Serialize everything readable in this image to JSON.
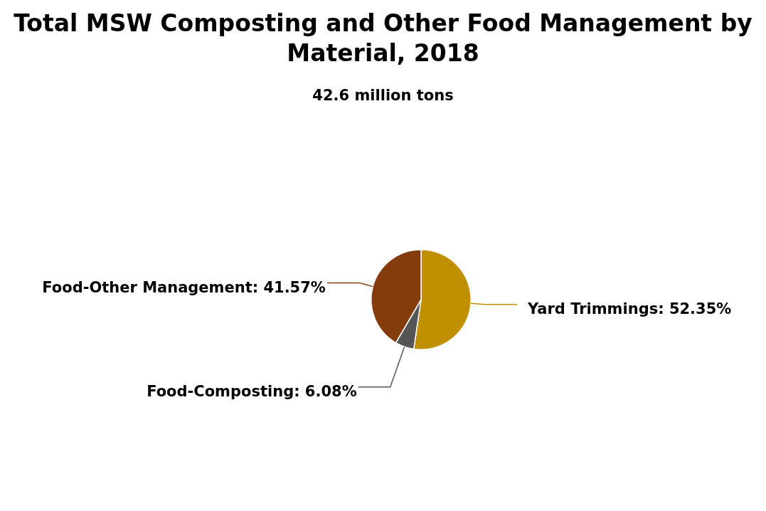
{
  "chart_data": {
    "type": "pie",
    "title": "Total MSW Composting and Other Food Management by Material, 2018",
    "subtitle": "42.6 million tons",
    "categories": [
      "Yard Trimmings",
      "Food-Composting",
      "Food-Other Management"
    ],
    "values": [
      52.35,
      6.08,
      41.57
    ],
    "colors": [
      "#c09000",
      "#555555",
      "#843c0c"
    ],
    "value_labels": [
      "52.35%",
      "6.08%",
      "41.57%"
    ],
    "legend": false
  }
}
